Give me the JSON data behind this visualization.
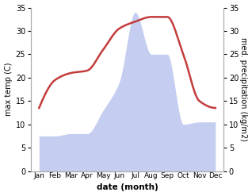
{
  "months": [
    "Jan",
    "Feb",
    "Mar",
    "Apr",
    "May",
    "Jun",
    "Jul",
    "Aug",
    "Sep",
    "Oct",
    "Nov",
    "Dec"
  ],
  "x": [
    0,
    1,
    2,
    3,
    4,
    5,
    6,
    7,
    8,
    9,
    10,
    11
  ],
  "temperature": [
    13.5,
    19.5,
    21.0,
    21.5,
    26.0,
    30.5,
    32.0,
    33.0,
    33.0,
    25.0,
    15.0,
    13.5
  ],
  "precipitation": [
    7.5,
    7.5,
    8.0,
    8.0,
    13.0,
    19.0,
    34.0,
    25.0,
    25.0,
    10.0,
    10.5,
    10.5
  ],
  "temp_color": "#c43c3c",
  "precip_color": "#c5cef0",
  "ylabel_left": "max temp (C)",
  "ylabel_right": "med. precipitation (kg/m2)",
  "xlabel": "date (month)",
  "ylim_left": [
    0,
    35
  ],
  "ylim_right": [
    0,
    35
  ],
  "yticks_left": [
    0,
    5,
    10,
    15,
    20,
    25,
    30,
    35
  ],
  "yticks_right": [
    0,
    5,
    10,
    15,
    20,
    25,
    30,
    35
  ],
  "background_color": "#ffffff",
  "line_width": 1.8
}
